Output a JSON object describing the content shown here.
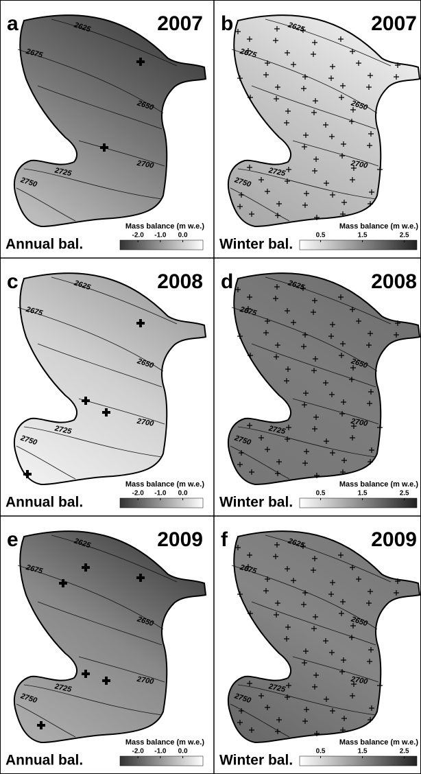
{
  "panels": [
    {
      "letter": "a",
      "year": 2007,
      "balance": "Annual bal.",
      "colorbar": {
        "title": "Mass balance (m w.e.)",
        "clim": [
          -2.8,
          0.9
        ],
        "ticks": [
          {
            "value": -2,
            "label": "-2.0"
          },
          {
            "value": -1,
            "label": "-1.0"
          },
          {
            "value": 0,
            "label": "0.0"
          }
        ]
      }
    },
    {
      "letter": "b",
      "year": 2007,
      "balance": "Winter bal.",
      "colorbar": {
        "title": "Mass balance (m w.e.)",
        "clim": [
          0,
          2.8
        ],
        "ticks": [
          0.5,
          1.5,
          2.5
        ]
      }
    },
    {
      "letter": "c",
      "year": 2008,
      "balance": "Annual bal.",
      "colorbar": {
        "title": "Mass balance (m w.e.)",
        "clim": [
          -2.8,
          0.9
        ],
        "ticks": [
          {
            "value": -2,
            "label": "-2.0"
          },
          {
            "value": -1,
            "label": "-1.0"
          },
          {
            "value": 0,
            "label": "0.0"
          }
        ]
      }
    },
    {
      "letter": "d",
      "year": 2008,
      "balance": "Winter bal.",
      "colorbar": {
        "title": "Mass balance (m w.e.)",
        "clim": [
          0,
          2.8
        ],
        "ticks": [
          0.5,
          1.5,
          2.5
        ]
      }
    },
    {
      "letter": "e",
      "year": 2009,
      "balance": "Annual bal.",
      "colorbar": {
        "title": "Mass balance (m w.e.)",
        "clim": [
          -2.8,
          0.9
        ],
        "ticks": [
          {
            "value": -2,
            "label": "-2.0"
          },
          {
            "value": -1,
            "label": "-1.0"
          },
          {
            "value": 0,
            "label": "0.0"
          }
        ]
      }
    },
    {
      "letter": "f",
      "year": 2009,
      "balance": "Winter bal.",
      "colorbar": {
        "title": "Mass balance (m w.e.)",
        "clim": [
          0,
          2.8
        ],
        "ticks": [
          0.5,
          1.5,
          2.5
        ]
      }
    }
  ],
  "contour_labels": [
    2625,
    2675,
    2650,
    2700,
    2725,
    2750
  ]
}
